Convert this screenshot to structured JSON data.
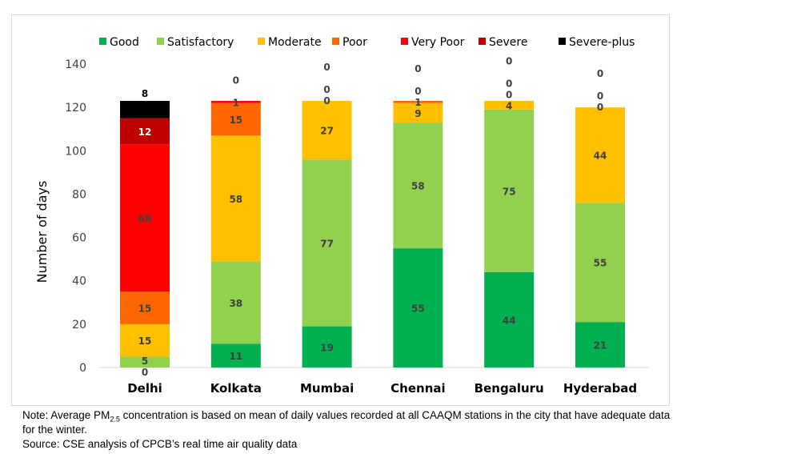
{
  "chart_data": {
    "type": "bar",
    "stacked": true,
    "categories": [
      "Delhi",
      "Kolkata",
      "Mumbai",
      "Chennai",
      "Bengaluru",
      "Hyderabad"
    ],
    "series": [
      {
        "name": "Good",
        "color": "#00b050",
        "values": [
          0,
          11,
          19,
          55,
          44,
          21
        ]
      },
      {
        "name": "Satisfactory",
        "color": "#92d050",
        "values": [
          5,
          38,
          77,
          58,
          75,
          55
        ]
      },
      {
        "name": "Moderate",
        "color": "#ffc000",
        "values": [
          15,
          58,
          27,
          9,
          4,
          44
        ]
      },
      {
        "name": "Poor",
        "color": "#ff6600",
        "values": [
          15,
          15,
          0,
          1,
          0,
          0
        ]
      },
      {
        "name": "Very Poor",
        "color": "#ff0000",
        "values": [
          68,
          1,
          0,
          0,
          0,
          0
        ]
      },
      {
        "name": "Severe",
        "color": "#c00000",
        "values": [
          12,
          0,
          0,
          0,
          0,
          0
        ]
      },
      {
        "name": "Severe-plus",
        "color": "#000000",
        "values": [
          8,
          0,
          0,
          0,
          0,
          0
        ]
      }
    ],
    "ylabel": "Number of days",
    "ylim": [
      0,
      140
    ],
    "yticks": [
      0,
      20,
      40,
      60,
      80,
      100,
      120,
      140
    ],
    "grid": false,
    "legend": "top"
  },
  "note": {
    "prefix": "Note: Average PM",
    "sub": "2.5",
    "rest": " concentration is based on mean of daily values recorded at all CAAQM stations in the city that have adequate data",
    "line2": "for the winter.",
    "source": "Source: CSE analysis of CPCB’s real time air quality data"
  }
}
